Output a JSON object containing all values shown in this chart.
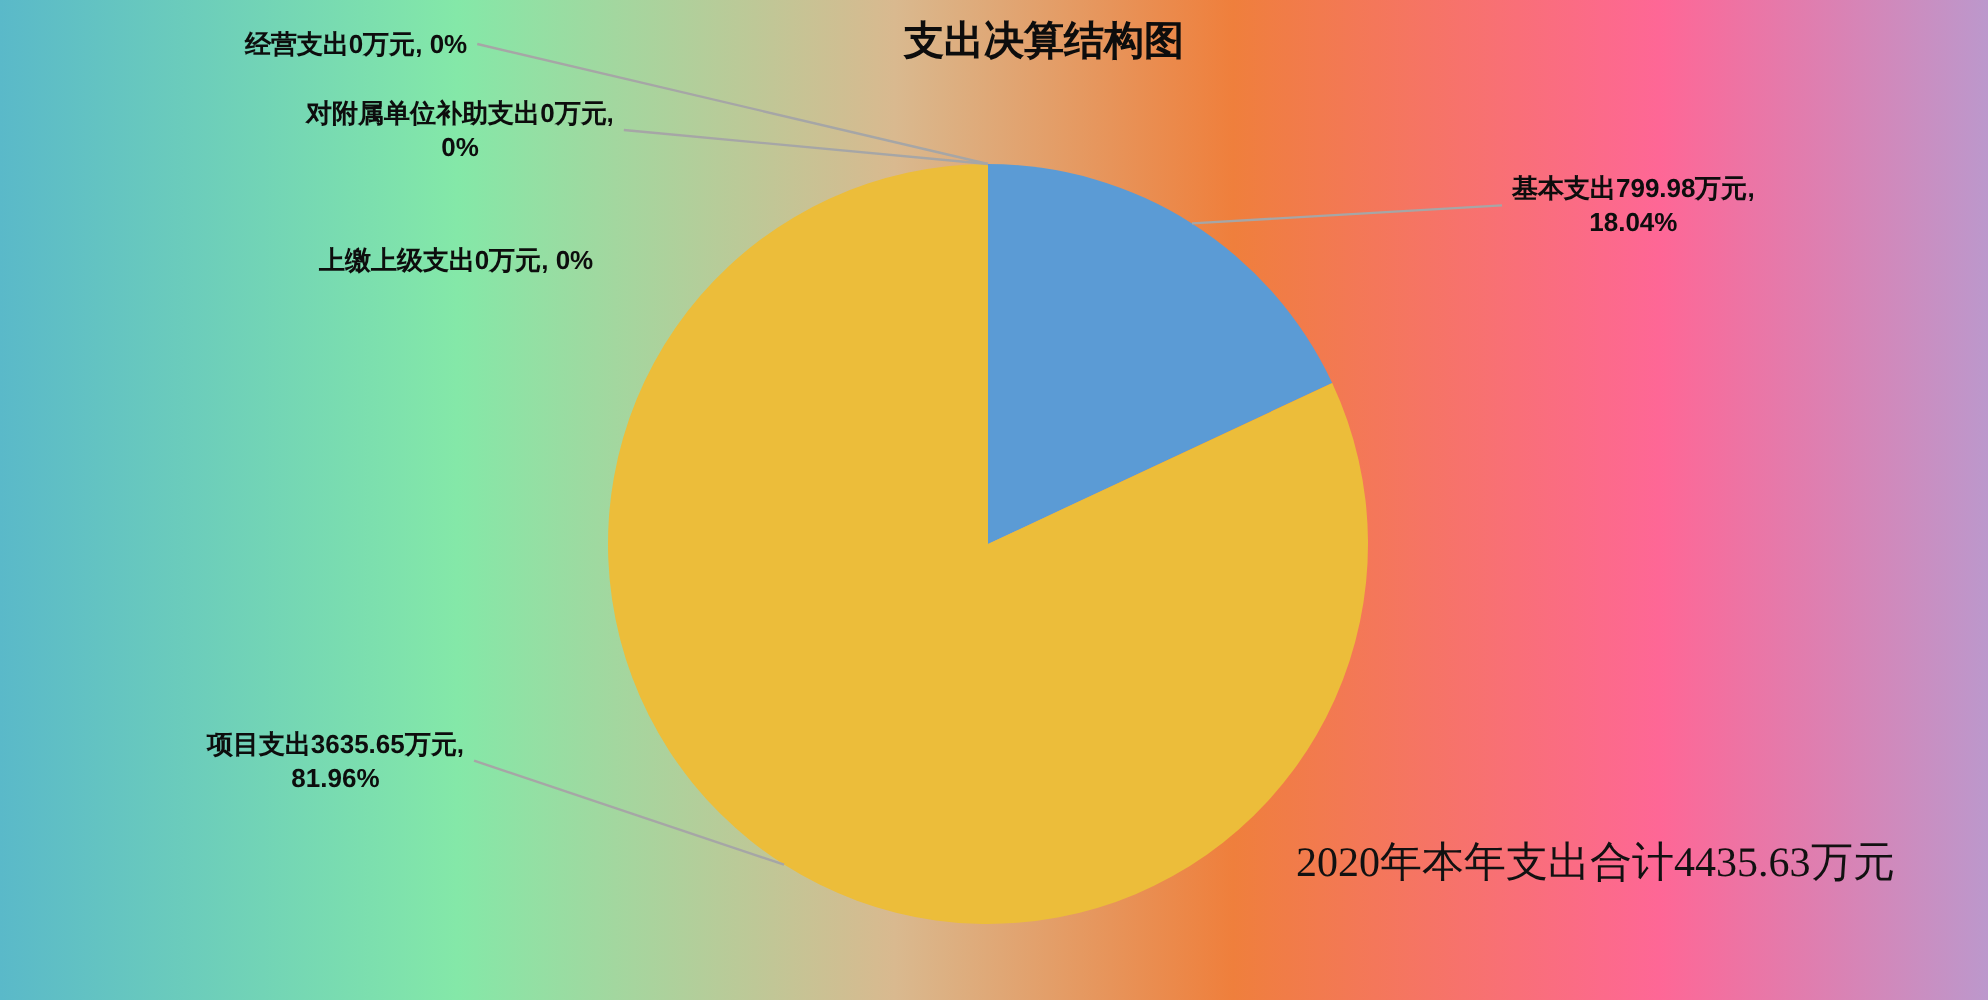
{
  "chart_data": {
    "type": "pie",
    "title": "支出决算结构图",
    "categories": [
      "基本支出",
      "项目支出",
      "上缴上级支出",
      "对附属单位补助支出",
      "经营支出"
    ],
    "values": [
      799.98,
      3635.65,
      0,
      0,
      0
    ],
    "colors": [
      "#5b9bd5",
      "#ecbd3a",
      null,
      null,
      null
    ],
    "value_labels": [
      "799.98万元, 18.04%",
      "3635.65万元, 81.96%",
      "0万元, 0%",
      "0万元, 0%",
      "0万元, 0%"
    ],
    "annotations": [
      "2020年本年支出合计4435.63万元"
    ]
  }
}
